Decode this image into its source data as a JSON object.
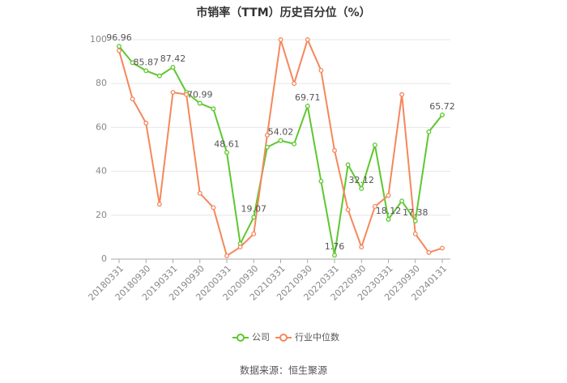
{
  "chart_data": {
    "type": "line",
    "title": "市销率（TTM）历史百分位（%）",
    "source": "数据来源：恒生聚源",
    "categories": [
      "20180331",
      null,
      "20180930",
      null,
      "20190331",
      null,
      "20190930",
      null,
      "20200331",
      null,
      "20200930",
      null,
      "20210331",
      null,
      "20210930",
      null,
      "20220331",
      null,
      "20220930",
      null,
      "20230331",
      null,
      "20230930",
      null,
      "20240131"
    ],
    "series": [
      {
        "name": "公司",
        "color": "#5ec72f",
        "values": [
          96.96,
          89.5,
          85.87,
          83.5,
          87.42,
          76,
          70.99,
          68.5,
          48.61,
          7,
          19.07,
          51,
          54.02,
          52.5,
          69.71,
          35.5,
          1.76,
          43,
          32.12,
          52,
          18.12,
          26.5,
          17.38,
          58,
          65.72
        ]
      },
      {
        "name": "行业中位数",
        "color": "#f5875c",
        "values": [
          95,
          73,
          62,
          25,
          76,
          75,
          30,
          23.5,
          1.5,
          5.5,
          11.5,
          56.5,
          100,
          80,
          100,
          86,
          49.5,
          22.5,
          5.5,
          24,
          29,
          75,
          11.5,
          3,
          5
        ]
      }
    ],
    "ylim": [
      0,
      100
    ],
    "yticks": [
      0,
      20,
      40,
      60,
      80,
      100
    ],
    "grid": true
  }
}
